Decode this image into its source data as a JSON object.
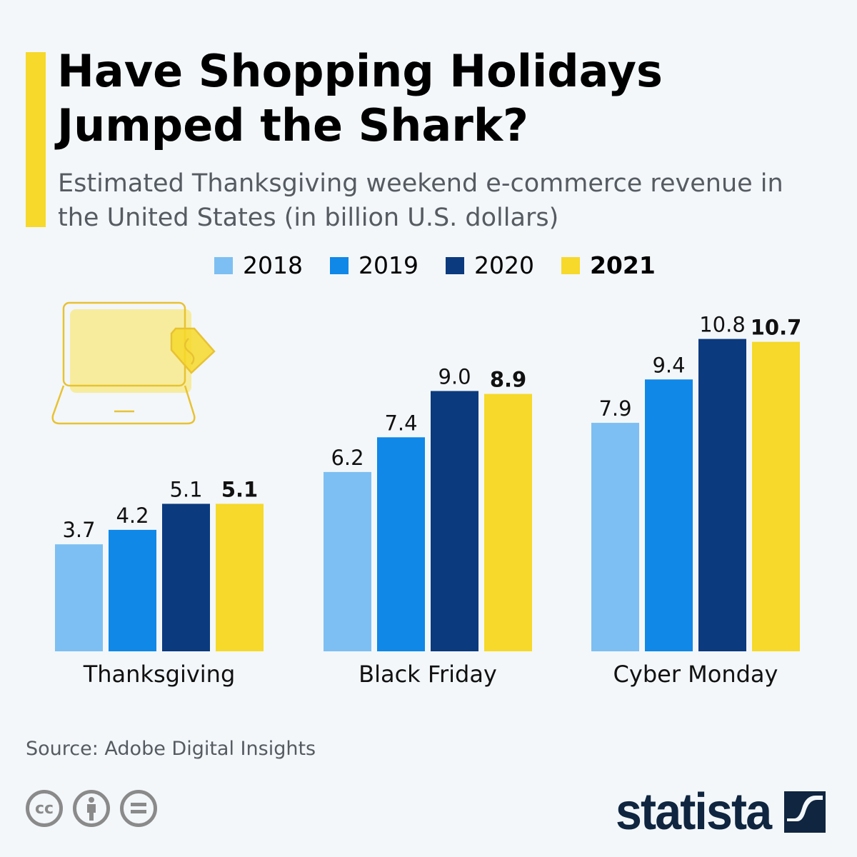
{
  "header": {
    "title_line1": "Have Shopping Holidays",
    "title_line2": "Jumped the Shark?",
    "subtitle": "Estimated Thanksgiving weekend e-commerce revenue in the United States (in billion U.S. dollars)"
  },
  "colors": {
    "accent": "#f6d92a",
    "2018": "#7dbff2",
    "2019": "#0f88e8",
    "2020": "#0b3a7e",
    "2021": "#f6d92a"
  },
  "icons": {
    "illustration": "laptop-with-price-tag-icon",
    "license": [
      "cc-icon",
      "attribution-icon",
      "no-derivatives-icon"
    ],
    "logo": "statista-logo"
  },
  "chart_data": {
    "type": "bar",
    "categories": [
      "Thanksgiving",
      "Black Friday",
      "Cyber Monday"
    ],
    "series": [
      {
        "name": "2018",
        "values": [
          3.7,
          6.2,
          7.9
        ],
        "color": "#7dbff2"
      },
      {
        "name": "2019",
        "values": [
          4.2,
          7.4,
          9.4
        ],
        "color": "#0f88e8"
      },
      {
        "name": "2020",
        "values": [
          5.1,
          9.0,
          10.8
        ],
        "color": "#0b3a7e"
      },
      {
        "name": "2021",
        "values": [
          5.1,
          8.9,
          10.7
        ],
        "color": "#f6d92a",
        "bold": true
      }
    ],
    "value_labels": [
      [
        "3.7",
        "6.2",
        "7.9"
      ],
      [
        "4.2",
        "7.4",
        "9.4"
      ],
      [
        "5.1",
        "9.0",
        "10.8"
      ],
      [
        "5.1",
        "8.9",
        "10.7"
      ]
    ],
    "legend_position": "top",
    "grid": false,
    "ylim": [
      0,
      11
    ]
  },
  "footer": {
    "source": "Source: Adobe Digital Insights",
    "logo_text": "statista"
  }
}
